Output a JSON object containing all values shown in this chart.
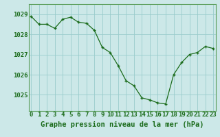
{
  "hours": [
    0,
    1,
    2,
    3,
    4,
    5,
    6,
    7,
    8,
    9,
    10,
    11,
    12,
    13,
    14,
    15,
    16,
    17,
    18,
    19,
    20,
    21,
    22,
    23
  ],
  "pressure": [
    1028.9,
    1028.5,
    1028.5,
    1028.3,
    1028.75,
    1028.85,
    1028.6,
    1028.55,
    1028.2,
    1027.35,
    1027.1,
    1026.45,
    1025.7,
    1025.45,
    1024.85,
    1024.75,
    1024.6,
    1024.55,
    1026.0,
    1026.6,
    1027.0,
    1027.1,
    1027.4,
    1027.3
  ],
  "line_color": "#1a6b1a",
  "marker_color": "#1a6b1a",
  "bg_color": "#cce8e8",
  "grid_color": "#99cccc",
  "border_color": "#5a9e5a",
  "title": "Graphe pression niveau de la mer (hPa)",
  "xlabel_ticks": [
    "0",
    "1",
    "2",
    "3",
    "4",
    "5",
    "6",
    "7",
    "8",
    "9",
    "10",
    "11",
    "12",
    "13",
    "14",
    "15",
    "16",
    "17",
    "18",
    "19",
    "20",
    "21",
    "22",
    "23"
  ],
  "yticks": [
    1025,
    1026,
    1027,
    1028,
    1029
  ],
  "ylim": [
    1024.2,
    1029.5
  ],
  "xlim": [
    -0.3,
    23.3
  ],
  "title_fontsize": 7.5,
  "tick_fontsize": 6.5,
  "title_color": "#1a6b1a",
  "tick_color": "#1a6b1a",
  "axis_color": "#5a9e5a"
}
